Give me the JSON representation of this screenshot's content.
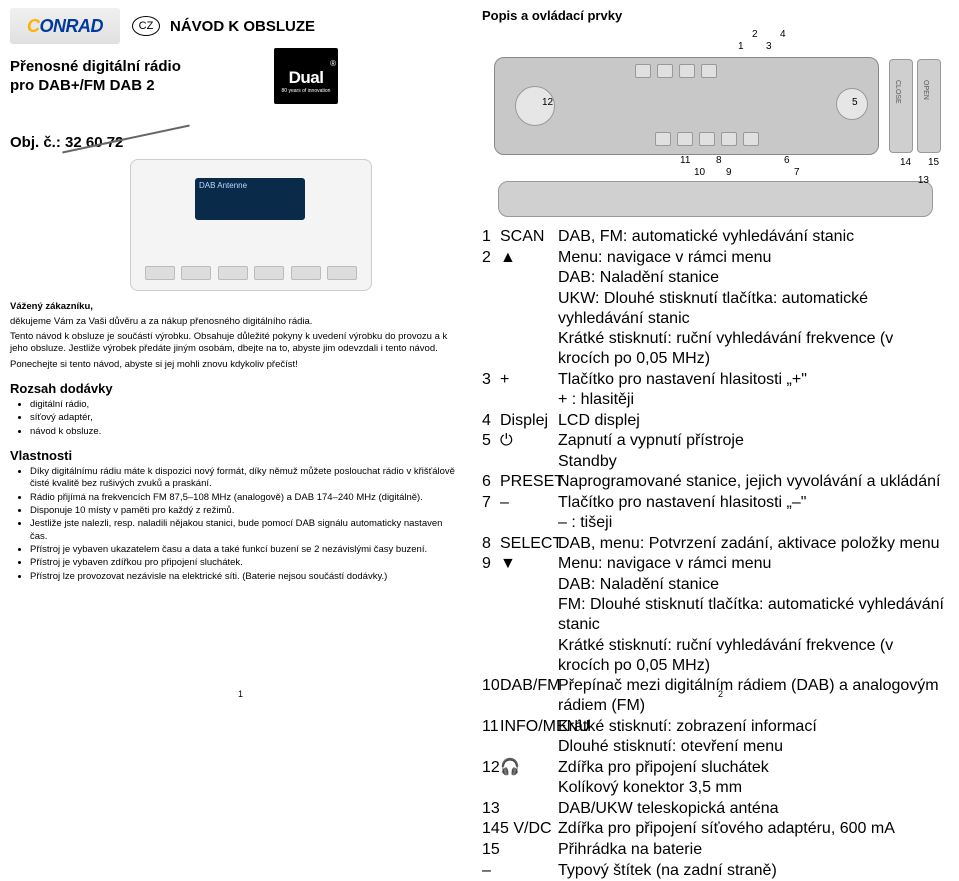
{
  "logo": {
    "pre": "C",
    "rest": "ONRAD"
  },
  "cz": "CZ",
  "manual_title": "NÁVOD K OBSLUZE",
  "product_title_l1": "Přenosné digitální rádio",
  "product_title_l2": "pro DAB+/FM DAB 2",
  "obj": "Obj. č.: 32 60 72",
  "dual": {
    "brand": "Dual",
    "tag": "80 years of innovation",
    "reg": "®"
  },
  "radio_screen": "DAB Antenne",
  "greeting": "Vážený zákazníku,",
  "p1": "děkujeme Vám za Vaši důvěru a za nákup přenosného digitálního rádia.",
  "p2": "Tento návod k obsluze je součástí výrobku. Obsahuje důležité pokyny k uvedení výrobku do provozu a k jeho obsluze. Jestliže výrobek předáte jiným osobám, dbejte na to, abyste jim odevzdali i tento návod.",
  "p3": "Ponechejte si tento návod, abyste si jej mohli znovu kdykoliv přečíst!",
  "rozsah_h": "Rozsah dodávky",
  "rozsah": [
    "digitální rádio,",
    "síťový adaptér,",
    "návod k obsluze."
  ],
  "vlast_h": "Vlastnosti",
  "vlast": [
    "Díky digitálnímu rádiu máte k dispozici nový formát, díky němuž můžete poslouchat rádio v křišťálově čisté kvalitě bez rušivých zvuků a praskání.",
    "Rádio přijímá na frekvencích FM 87,5–108 MHz (analogově) a DAB 174–240 MHz (digitálně).",
    "Disponuje 10 místy v paměti pro každý z režimů.",
    "Jestliže jste nalezli, resp. naladili nějakou stanici, bude pomocí DAB signálu automaticky nastaven čas.",
    "Přístroj je vybaven ukazatelem času a data a také funkcí buzení se 2 nezávislými časy buzení.",
    "Přístroj je vybaven zdířkou pro připojení sluchátek.",
    "Přístroj lze provozovat nezávisle na elektrické síti. (Baterie nejsou součástí dodávky.)"
  ],
  "right_title": "Popis a ovládací prvky",
  "callouts_top": {
    "c1": "1",
    "c2": "2",
    "c3": "3",
    "c4": "4",
    "c5": "5",
    "c6": "6",
    "c7": "7",
    "c8": "8",
    "c9": "9",
    "c10": "10",
    "c11": "11",
    "c12": "12",
    "c13": "13",
    "c14": "14",
    "c15": "15"
  },
  "side_labels": {
    "close": "CLOSE",
    "open": "OPEN"
  },
  "table": [
    {
      "n": "1",
      "k": "SCAN",
      "v": "DAB, FM: automatické vyhledávání stanic"
    },
    {
      "n": "2",
      "k": "▲",
      "v": "Menu: navigace v rámci menu"
    },
    {
      "n": "",
      "k": "",
      "v": "DAB: Naladění stanice"
    },
    {
      "n": "",
      "k": "",
      "v": "UKW: Dlouhé stisknutí tlačítka: automatické vyhledávání stanic"
    },
    {
      "n": "",
      "k": "",
      "v": "Krátké stisknutí: ruční vyhledávání frekvence (v krocích po 0,05 MHz)"
    },
    {
      "n": "3",
      "k": "+",
      "v": "Tlačítko pro nastavení hlasitosti „+\""
    },
    {
      "n": "",
      "k": "",
      "v": "+ : hlasitěji"
    },
    {
      "n": "4",
      "k": "Displej",
      "v": "LCD displej"
    },
    {
      "n": "5",
      "k": "⏻",
      "v": "Zapnutí a vypnutí přístroje"
    },
    {
      "n": "",
      "k": "",
      "v": "Standby"
    },
    {
      "n": "6",
      "k": "PRESET",
      "v": "Naprogramované stanice, jejich vyvolávání a ukládání"
    },
    {
      "n": "7",
      "k": "–",
      "v": "Tlačítko pro nastavení hlasitosti „–\""
    },
    {
      "n": "",
      "k": "",
      "v": "– : tišeji"
    },
    {
      "n": "8",
      "k": "SELECT",
      "v": "DAB, menu: Potvrzení zadání, aktivace položky menu"
    },
    {
      "n": "9",
      "k": "▼",
      "v": "Menu: navigace v rámci menu"
    },
    {
      "n": "",
      "k": "",
      "v": "DAB: Naladění stanice"
    },
    {
      "n": "",
      "k": "",
      "v": "FM: Dlouhé stisknutí tlačítka: automatické vyhledávání stanic"
    },
    {
      "n": "",
      "k": "",
      "v": "Krátké stisknutí: ruční vyhledávání frekvence (v krocích po 0,05 MHz)"
    },
    {
      "n": "10",
      "k": "DAB/FM",
      "v": "Přepínač mezi digitálním rádiem (DAB) a analogovým rádiem (FM)"
    },
    {
      "n": "11",
      "k": "INFO/MENU",
      "v": "Krátké stisknutí: zobrazení informací"
    },
    {
      "n": "",
      "k": "",
      "v": "Dlouhé stisknutí: otevření menu"
    },
    {
      "n": "12",
      "k": "🎧",
      "v": "Zdířka pro připojení sluchátek"
    },
    {
      "n": "",
      "k": "",
      "v": "Kolíkový konektor 3,5 mm"
    },
    {
      "n": "13",
      "k": "",
      "v": "DAB/UKW teleskopická anténa"
    },
    {
      "n": "14",
      "k": "5 V/DC",
      "v": "Zdířka pro připojení síťového adaptéru, 600 mA"
    },
    {
      "n": "",
      "k": "",
      "v": ""
    },
    {
      "n": "15",
      "k": "",
      "v": "Přihrádka na baterie"
    },
    {
      "n": "–",
      "k": "",
      "v": "Typový štítek (na zadní straně)"
    }
  ],
  "pg1": "1",
  "pg2": "2"
}
